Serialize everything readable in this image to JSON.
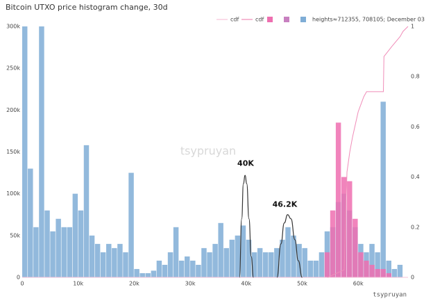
{
  "chart_data": {
    "type": "histogram",
    "title": "Bitcoin UTXO price histogram change, 30d",
    "xlim": [
      0,
      68900
    ],
    "xticks": [
      0,
      {
        "value": 10000,
        "label": "10k"
      },
      {
        "value": 20000,
        "label": "20k"
      },
      {
        "value": 30000,
        "label": "30k"
      },
      {
        "value": 40000,
        "label": "40k"
      },
      {
        "value": 50000,
        "label": "50k"
      },
      {
        "value": 60000,
        "label": "60k"
      }
    ],
    "ylim": [
      0,
      300000
    ],
    "yticks": [
      0,
      {
        "value": 50000,
        "label": "50k"
      },
      {
        "value": 100000,
        "label": "100k"
      },
      {
        "value": 150000,
        "label": "150k"
      },
      {
        "value": 200000,
        "label": "200k"
      },
      {
        "value": 250000,
        "label": "250k"
      },
      {
        "value": 300000,
        "label": "300k"
      }
    ],
    "y2lim": [
      0,
      1
    ],
    "y2ticks": [
      0,
      0.2,
      0.4,
      0.6,
      0.8,
      1
    ],
    "series": [
      {
        "name": "cdf",
        "type": "line",
        "axis": "y2",
        "color": "#f6c3d8",
        "x": [
          0,
          68900
        ],
        "values": [
          0,
          0
        ]
      },
      {
        "name": "cdf",
        "type": "line",
        "axis": "y2",
        "color": "#f08cb8",
        "x": [
          54500,
          57500,
          58000,
          58500,
          59000,
          60000,
          61000,
          61500,
          64500,
          64600,
          66000,
          67500,
          68000,
          68900
        ],
        "values": [
          0,
          0.03,
          0.42,
          0.5,
          0.56,
          0.66,
          0.72,
          0.74,
          0.74,
          0.88,
          0.92,
          0.96,
          0.98,
          1
        ]
      },
      {
        "type": "histogram",
        "color": "#ee6fb0",
        "bins": [
          54000,
          55000,
          56000,
          57000,
          58000,
          59000,
          60000,
          61000,
          62000,
          63000,
          64000,
          65000,
          66000
        ],
        "values": [
          30000,
          80000,
          185000,
          120000,
          115000,
          70000,
          30000,
          20000,
          15000,
          10000,
          10000,
          5000
        ]
      },
      {
        "type": "histogram",
        "color": "#c880c0"
      },
      {
        "name": "heights≈712355, 708105; December 03",
        "type": "histogram",
        "color": "#7fadd6",
        "bins": [
          0,
          1000,
          2000,
          3000,
          4000,
          5000,
          6000,
          7000,
          8000,
          9000,
          10000,
          11000,
          12000,
          13000,
          14000,
          15000,
          16000,
          17000,
          18000,
          19000,
          20000,
          21000,
          22000,
          23000,
          24000,
          25000,
          26000,
          27000,
          28000,
          29000,
          30000,
          31000,
          32000,
          33000,
          34000,
          35000,
          36000,
          37000,
          38000,
          39000,
          40000,
          41000,
          42000,
          43000,
          44000,
          45000,
          46000,
          47000,
          48000,
          49000,
          50000,
          51000,
          52000,
          53000,
          54000,
          55000,
          56000,
          57000,
          58000,
          59000,
          60000,
          61000,
          62000,
          63000,
          64000,
          65000,
          66000,
          67000,
          68000
        ],
        "values": [
          300000,
          130000,
          60000,
          300000,
          80000,
          55000,
          70000,
          60000,
          60000,
          100000,
          80000,
          158000,
          50000,
          40000,
          30000,
          40000,
          35000,
          40000,
          30000,
          125000,
          10000,
          5000,
          5000,
          8000,
          20000,
          15000,
          30000,
          60000,
          20000,
          25000,
          20000,
          15000,
          35000,
          30000,
          40000,
          65000,
          35000,
          45000,
          50000,
          62000,
          45000,
          30000,
          35000,
          30000,
          30000,
          35000,
          45000,
          60000,
          50000,
          40000,
          35000,
          20000,
          20000,
          30000,
          55000,
          60000,
          90000,
          100000,
          80000,
          60000,
          40000,
          30000,
          40000,
          30000,
          210000,
          20000,
          10000,
          15000
        ]
      }
    ],
    "fits": [
      {
        "color": "#333333",
        "x": [
          38800,
          39200,
          39500,
          39800,
          40100,
          40500,
          40900,
          41300
        ],
        "values": [
          0,
          70000,
          112000,
          122000,
          112000,
          70000,
          25000,
          0
        ]
      },
      {
        "color": "#333333",
        "x": [
          45500,
          46200,
          46800,
          47400,
          48000,
          48700,
          49300,
          50000
        ],
        "values": [
          0,
          40000,
          65000,
          75000,
          70000,
          45000,
          20000,
          0
        ]
      }
    ],
    "annotations": [
      {
        "text": "40K",
        "x": 39900,
        "y": 136000
      },
      {
        "text": "46.2K",
        "x": 46900,
        "y": 87000
      }
    ],
    "watermark": "tsypruyan",
    "credit": "tsypruyan"
  }
}
